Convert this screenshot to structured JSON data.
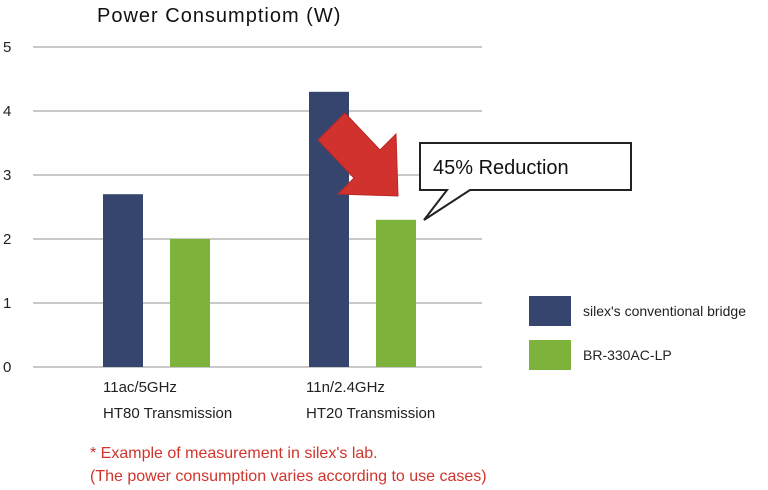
{
  "chart_data": {
    "type": "bar",
    "title": "Power Consumptiom (W)",
    "categories": [
      [
        "11ac/5GHz",
        "HT80 Transmission"
      ],
      [
        "11n/2.4GHz",
        "HT20 Transmission"
      ]
    ],
    "series": [
      {
        "name": "silex's conventional bridge",
        "values": [
          2.7,
          4.3
        ],
        "color": "#36456e"
      },
      {
        "name": "BR-330AC-LP",
        "values": [
          2.0,
          2.3
        ],
        "color": "#7db33a"
      }
    ],
    "ylim": [
      0,
      5
    ],
    "yticks": [
      0,
      1,
      2,
      3,
      4,
      5
    ],
    "grid": true,
    "legend": "right",
    "annotation": {
      "text": "45% Reduction",
      "arrow_color": "#d2322d"
    },
    "notes": [
      "* Example of measurement in silex's lab.",
      "(The power consumption varies according to use cases)"
    ]
  }
}
